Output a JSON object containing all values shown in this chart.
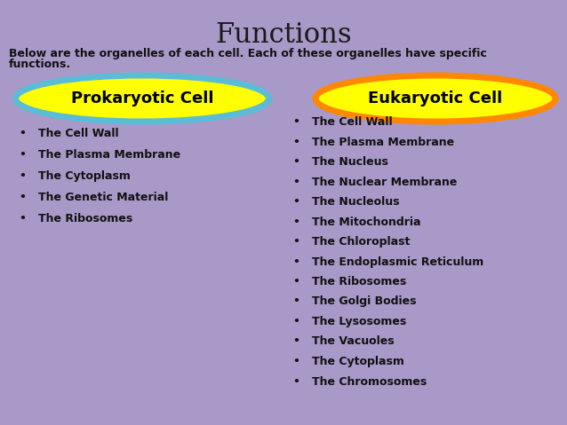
{
  "title": "Functions",
  "subtitle_line1": "Below are the organelles of each cell. Each of these organelles have specific",
  "subtitle_line2": "functions.",
  "background_color": "#a899c8",
  "title_color": "#1a1a1a",
  "text_color": "#111111",
  "prokaryotic_label": "Prokaryotic Cell",
  "eukaryotic_label": "Eukaryotic Cell",
  "ellipse_fill": "#ffff00",
  "prokaryotic_border": "#5bbcd6",
  "eukaryotic_border": "#ff8800",
  "title_fontsize": 22,
  "subtitle_fontsize": 9,
  "label_fontsize": 13,
  "item_fontsize": 9,
  "prokaryotic_items": [
    "The Cell Wall",
    "The Plasma Membrane",
    "The Cytoplasm",
    "The Genetic Material",
    "The Ribosomes"
  ],
  "eukaryotic_items": [
    "The Cell Wall",
    "The Plasma Membrane",
    "The Nucleus",
    "The Nuclear Membrane",
    "The Nucleolus",
    "The Mitochondria",
    "The Chloroplast",
    "The Endoplasmic Reticulum",
    "The Ribosomes",
    "The Golgi Bodies",
    "The Lysosomes",
    "The Vacuoles",
    "The Cytoplasm",
    "The Chromosomes"
  ]
}
